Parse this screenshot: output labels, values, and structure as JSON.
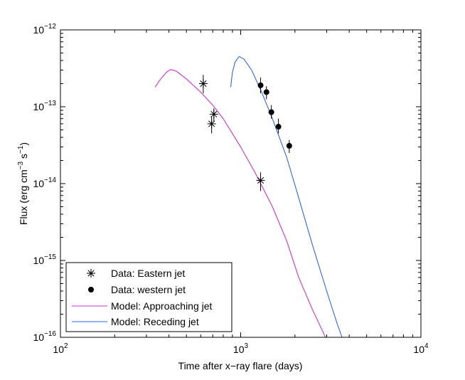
{
  "chart_data": {
    "type": "scatter",
    "title": "",
    "xlabel": "Time after x−ray flare (days)",
    "ylabel": {
      "base": "Flux (erg cm",
      "exp1": "−3",
      "mid": " s",
      "exp2": "−1",
      "end": ")"
    },
    "xscale": "log",
    "yscale": "log",
    "xlim": [
      100,
      10000
    ],
    "ylim": [
      1e-16,
      1e-12
    ],
    "x_ticks": [
      {
        "value": 100,
        "base": "10",
        "exp": "2"
      },
      {
        "value": 1000,
        "base": "10",
        "exp": "3"
      },
      {
        "value": 10000,
        "base": "10",
        "exp": "4"
      }
    ],
    "y_ticks": [
      {
        "value": 1e-16,
        "base": "10",
        "exp": "−16"
      },
      {
        "value": 1e-15,
        "base": "10",
        "exp": "−15"
      },
      {
        "value": 1e-14,
        "base": "10",
        "exp": "−14"
      },
      {
        "value": 1e-13,
        "base": "10",
        "exp": "−13"
      },
      {
        "value": 1e-12,
        "base": "10",
        "exp": "−12"
      }
    ],
    "legend_position": "bottom-left",
    "series": [
      {
        "name": "Data: Eastern jet",
        "kind": "points",
        "marker": "asterisk",
        "color": "#000000",
        "points": [
          {
            "x": 620,
            "y": 2e-13,
            "ylo": 1.5e-13,
            "yhi": 2.6e-13
          },
          {
            "x": 690,
            "y": 6e-14,
            "ylo": 4.5e-14,
            "yhi": 7.5e-14
          },
          {
            "x": 710,
            "y": 8e-14,
            "ylo": 6.5e-14,
            "yhi": 9.5e-14
          },
          {
            "x": 1290,
            "y": 1.1e-14,
            "ylo": 8e-15,
            "yhi": 1.4e-14
          }
        ]
      },
      {
        "name": "Data: western jet",
        "kind": "points",
        "marker": "dot",
        "color": "#000000",
        "points": [
          {
            "x": 1290,
            "y": 1.9e-13,
            "ylo": 1.5e-13,
            "yhi": 2.4e-13
          },
          {
            "x": 1390,
            "y": 1.55e-13,
            "ylo": 1.25e-13,
            "yhi": 1.85e-13
          },
          {
            "x": 1480,
            "y": 8.5e-14,
            "ylo": 7e-14,
            "yhi": 1.05e-13
          },
          {
            "x": 1620,
            "y": 5.5e-14,
            "ylo": 4.5e-14,
            "yhi": 7e-14
          },
          {
            "x": 1860,
            "y": 3.1e-14,
            "ylo": 2.5e-14,
            "yhi": 3.7e-14
          }
        ]
      },
      {
        "name": "Model: Approaching jet",
        "kind": "line",
        "color": "#cc33cc",
        "points": [
          {
            "x": 335,
            "y": 1.8e-13
          },
          {
            "x": 360,
            "y": 2.3e-13
          },
          {
            "x": 390,
            "y": 2.85e-13
          },
          {
            "x": 410,
            "y": 3.05e-13
          },
          {
            "x": 440,
            "y": 2.9e-13
          },
          {
            "x": 500,
            "y": 2.3e-13
          },
          {
            "x": 600,
            "y": 1.55e-13
          },
          {
            "x": 700,
            "y": 1.05e-13
          },
          {
            "x": 800,
            "y": 7e-14
          },
          {
            "x": 1000,
            "y": 3e-14
          },
          {
            "x": 1200,
            "y": 1.4e-14
          },
          {
            "x": 1500,
            "y": 5e-15
          },
          {
            "x": 1800,
            "y": 1.8e-15
          },
          {
            "x": 2100,
            "y": 6e-16
          },
          {
            "x": 2500,
            "y": 2.3e-16
          },
          {
            "x": 2850,
            "y": 1.2e-16
          },
          {
            "x": 2950,
            "y": 1e-16
          }
        ]
      },
      {
        "name": "Model: Receding jet",
        "kind": "line",
        "color": "#3366ee",
        "points": [
          {
            "x": 880,
            "y": 1.8e-13
          },
          {
            "x": 900,
            "y": 2.8e-13
          },
          {
            "x": 930,
            "y": 3.8e-13
          },
          {
            "x": 980,
            "y": 4.5e-13
          },
          {
            "x": 1040,
            "y": 4.2e-13
          },
          {
            "x": 1150,
            "y": 3e-13
          },
          {
            "x": 1300,
            "y": 1.6e-13
          },
          {
            "x": 1500,
            "y": 7e-14
          },
          {
            "x": 1800,
            "y": 2.2e-14
          },
          {
            "x": 2100,
            "y": 6.5e-15
          },
          {
            "x": 2500,
            "y": 1.6e-15
          },
          {
            "x": 3000,
            "y": 4e-16
          },
          {
            "x": 3400,
            "y": 1.6e-16
          },
          {
            "x": 3650,
            "y": 1e-16
          }
        ]
      }
    ]
  }
}
